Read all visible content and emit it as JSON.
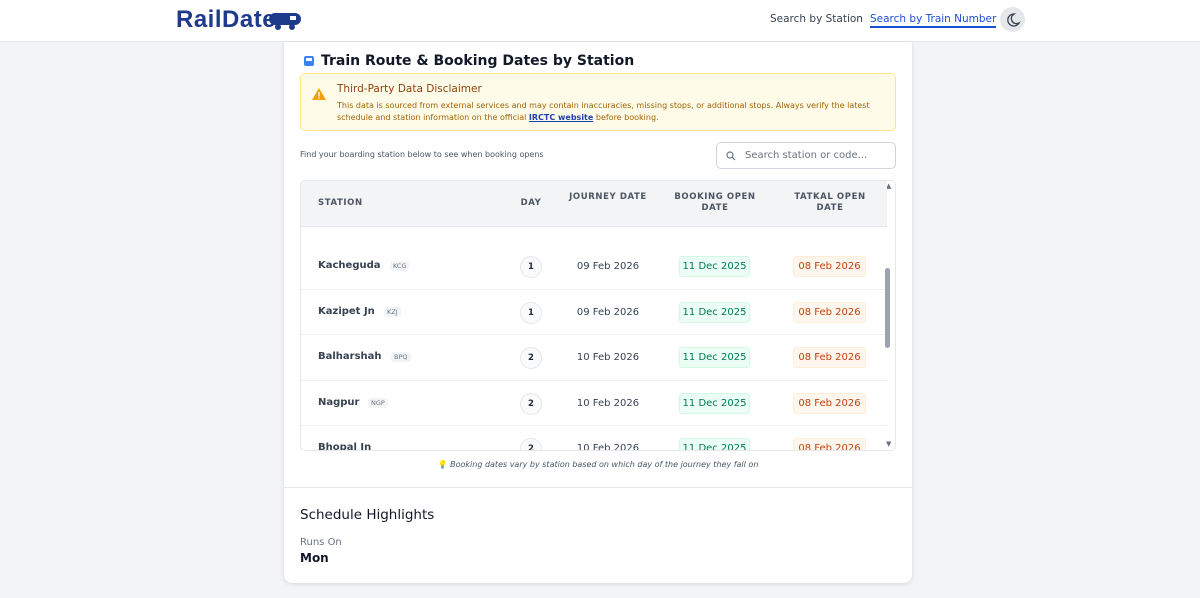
{
  "header": {
    "logo": "RailDate",
    "nav": [
      "Search by Station",
      "Search by Train Number"
    ]
  },
  "section": {
    "title": "Train Route & Booking Dates by Station",
    "disclaimer": {
      "title": "Third-Party Data Disclaimer",
      "text": "This data is sourced from external services and may contain inaccuracies, missing stops, or additional stops. Always verify the latest schedule and station information on the official",
      "link": "IRCTC website",
      "tail": "before booking."
    },
    "helper": "Find your boarding station below to see when booking opens",
    "search_placeholder": "Search station or code...",
    "table": {
      "headers": [
        "STATION",
        "DAY",
        "JOURNEY DATE",
        "BOOKING OPEN DATE",
        "TATKAL OPEN DATE"
      ],
      "rows": [
        {
          "station": "Kacheguda",
          "code": "KCG",
          "day": "1",
          "journey": "09 Feb 2026",
          "booking": "11 Dec 2025",
          "tatkal": "08 Feb 2026"
        },
        {
          "station": "Kazipet Jn",
          "code": "KZJ",
          "day": "1",
          "journey": "09 Feb 2026",
          "booking": "11 Dec 2025",
          "tatkal": "08 Feb 2026"
        },
        {
          "station": "Balharshah",
          "code": "BPQ",
          "day": "2",
          "journey": "10 Feb 2026",
          "booking": "11 Dec 2025",
          "tatkal": "08 Feb 2026"
        },
        {
          "station": "Nagpur",
          "code": "NGP",
          "day": "2",
          "journey": "10 Feb 2026",
          "booking": "11 Dec 2025",
          "tatkal": "08 Feb 2026"
        },
        {
          "station": "Bhopal Jn",
          "day": "2",
          "journey": "10 Feb 2026",
          "booking": "11 Dec 2025",
          "tatkal": "08 Feb 2026"
        }
      ]
    },
    "footnote": "Booking dates vary by station based on which day of the journey they fall on"
  },
  "highlights": {
    "title": "Schedule Highlights",
    "runs_on_label": "Runs On",
    "runs_on": "Mon"
  }
}
